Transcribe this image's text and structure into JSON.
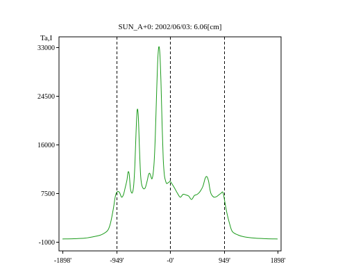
{
  "chart_data": {
    "type": "line",
    "title": "SUN_A+0: 2002/06/03: 6.06[cm]",
    "xlabel": "",
    "ylabel": "Ta,I",
    "xlim": [
      -1898,
      1898
    ],
    "ylim": [
      -1000,
      33000
    ],
    "x_ticks": [
      {
        "value": -1898,
        "label": "-1898'"
      },
      {
        "value": -949,
        "label": "-949'"
      },
      {
        "value": 0,
        "label": "-0'"
      },
      {
        "value": 949,
        "label": "949'"
      },
      {
        "value": 1898,
        "label": "1898'"
      }
    ],
    "y_ticks": [
      {
        "value": -1000,
        "label": "-1000"
      },
      {
        "value": 7500,
        "label": "7500"
      },
      {
        "value": 16000,
        "label": "16000"
      },
      {
        "value": 24500,
        "label": "24500"
      },
      {
        "value": 33000,
        "label": "33000"
      }
    ],
    "dashed_lines_x": [
      -949,
      0,
      949
    ],
    "grid": false,
    "line_color": "#1a9a1a",
    "series": [
      {
        "x": [
          -1898,
          -1700,
          -1500,
          -1300,
          -1200,
          -1100,
          -1050,
          -1000,
          -970,
          -949,
          -920,
          -890,
          -870,
          -850,
          -820,
          -790,
          -760,
          -740,
          -720,
          -700,
          -680,
          -660,
          -640,
          -620,
          -600,
          -580,
          -560,
          -540,
          -520,
          -500,
          -470,
          -440,
          -420,
          -400,
          -380,
          -360,
          -340,
          -320,
          -300,
          -280,
          -260,
          -240,
          -220,
          -200,
          -180,
          -160,
          -140,
          -120,
          -100,
          -80,
          -60,
          -40,
          -20,
          0,
          30,
          80,
          130,
          180,
          230,
          280,
          330,
          380,
          430,
          480,
          530,
          580,
          620,
          650,
          680,
          700,
          720,
          750,
          780,
          820,
          860,
          900,
          930,
          949,
          970,
          1000,
          1050,
          1100,
          1200,
          1300,
          1500,
          1700,
          1898
        ],
        "y": [
          -500,
          -450,
          -350,
          0,
          300,
          1000,
          2300,
          4800,
          6700,
          7500,
          7800,
          7600,
          7100,
          6800,
          7300,
          8500,
          9800,
          11200,
          10800,
          8400,
          7600,
          7700,
          9000,
          12500,
          18000,
          22000,
          21000,
          15500,
          10800,
          9000,
          8300,
          8400,
          9000,
          9800,
          10700,
          11000,
          10500,
          10000,
          10800,
          13000,
          17500,
          24000,
          30000,
          33000,
          32000,
          27000,
          19500,
          13500,
          10700,
          9700,
          9200,
          9300,
          9400,
          9600,
          9200,
          8400,
          7500,
          6800,
          7300,
          7200,
          7000,
          6400,
          7100,
          7300,
          7800,
          8700,
          10100,
          10400,
          9600,
          8400,
          7500,
          7000,
          6800,
          6900,
          7200,
          7500,
          7700,
          7000,
          5800,
          4200,
          2200,
          800,
          200,
          -100,
          -350,
          -450,
          -500
        ]
      }
    ]
  }
}
